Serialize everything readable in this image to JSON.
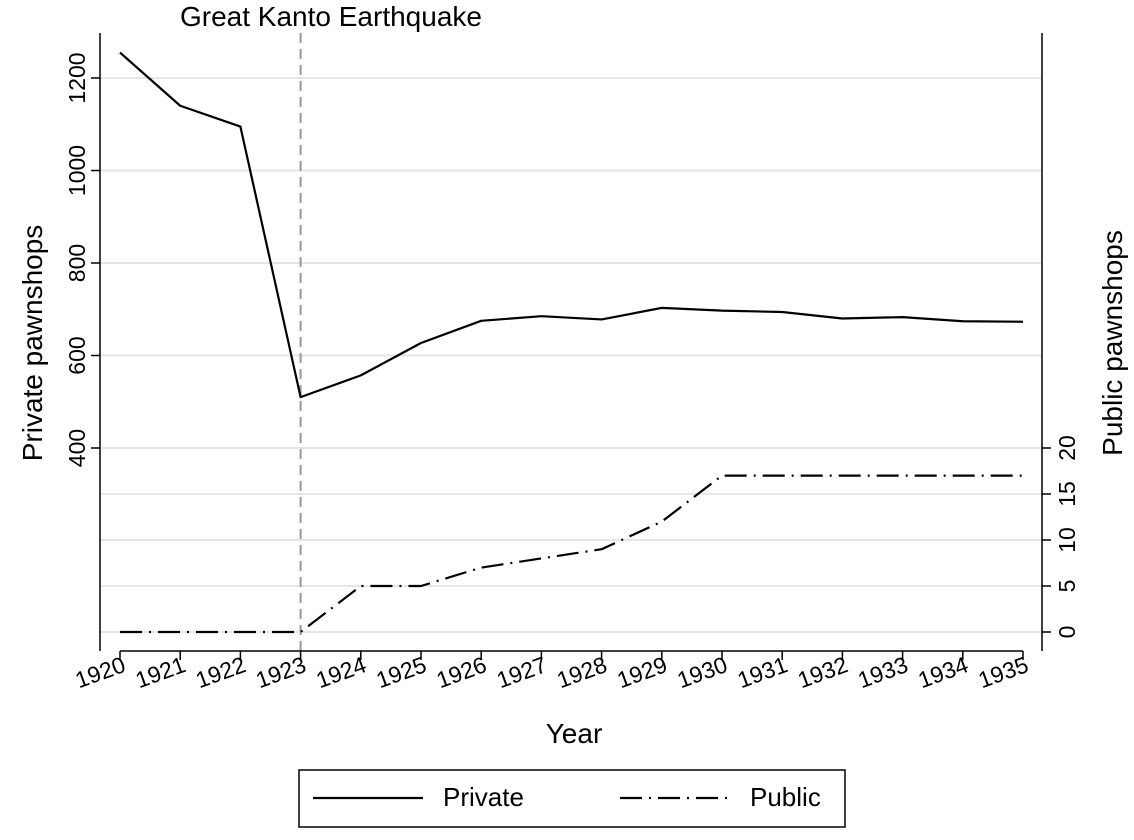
{
  "chart_data": {
    "type": "line",
    "title": "",
    "annotation": "Great Kanto Earthquake",
    "event_x": 1923,
    "xlabel": "Year",
    "ylabel_left": "Private pawnshops",
    "ylabel_right": "Public pawnshops",
    "x": [
      1920,
      1921,
      1922,
      1923,
      1924,
      1925,
      1926,
      1927,
      1928,
      1929,
      1930,
      1931,
      1932,
      1933,
      1934,
      1935
    ],
    "x_tick_labels": [
      "1920",
      "1921",
      "1922",
      "1923",
      "1924",
      "1925",
      "1926",
      "1927",
      "1928",
      "1929",
      "1930",
      "1931",
      "1932",
      "1933",
      "1934",
      "1935"
    ],
    "y_left_ticks": [
      "400",
      "600",
      "800",
      "1000",
      "1200"
    ],
    "y_right_ticks": [
      "0",
      "5",
      "10",
      "15",
      "20"
    ],
    "series": [
      {
        "name": "Private",
        "axis": "left",
        "style": "solid",
        "values": [
          1255,
          1140,
          1095,
          510,
          557,
          627,
          675,
          685,
          678,
          703,
          697,
          694,
          680,
          683,
          674,
          673
        ]
      },
      {
        "name": "Public",
        "axis": "right",
        "style": "dash-dot",
        "values": [
          0,
          0,
          0,
          0,
          5,
          5,
          7,
          8,
          9,
          12,
          17,
          17,
          17,
          17,
          17,
          17
        ]
      }
    ],
    "legend": {
      "position": "bottom",
      "entries": [
        "Private",
        "Public"
      ]
    },
    "grid": true,
    "colors": {
      "line": "#000000",
      "grid": "#e6e6e6",
      "event_line": "#999999"
    }
  }
}
